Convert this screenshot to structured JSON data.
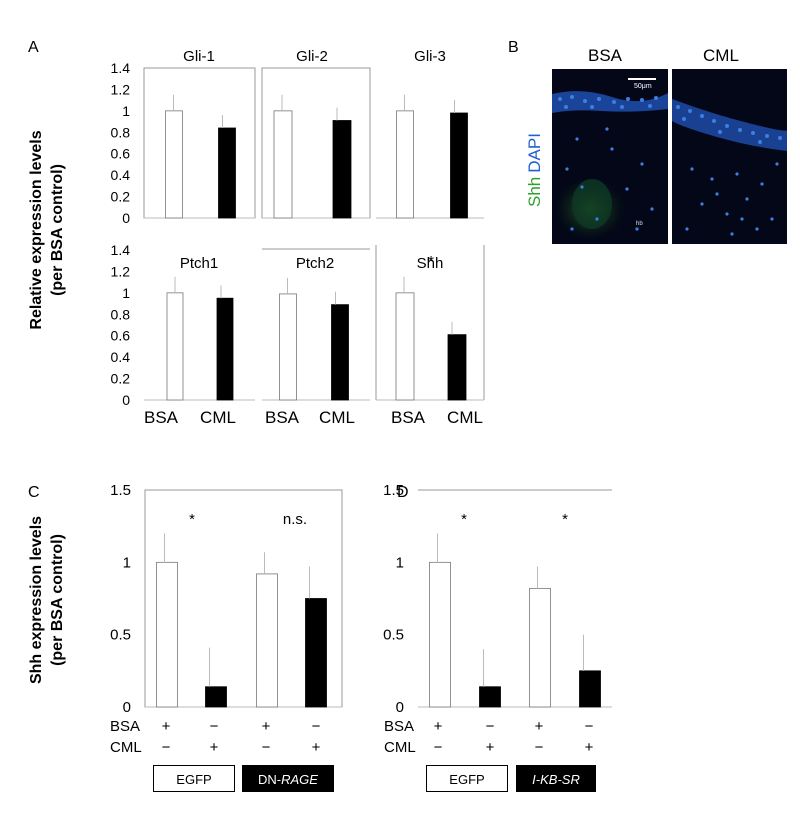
{
  "panel_letters": {
    "a": "A",
    "b": "B",
    "c": "C",
    "d": "D"
  },
  "panel_a": {
    "ylabel_line1": "Relative expression levels",
    "ylabel_line2": "(per BSA control)",
    "x_categories": [
      "BSA",
      "CML"
    ]
  },
  "panel_b": {
    "left_label": "BSA",
    "right_label": "CML",
    "side_label_green": "Shh",
    "side_label_blue": "DAPI",
    "scale_text": "50μm",
    "hb_text": "hb",
    "colors": {
      "green": "#2ca02c",
      "blue": "#2060d0"
    }
  },
  "panel_c": {
    "ylabel_line1": "Shh expression levels",
    "ylabel_line2": "(per BSA control)",
    "row_labels": [
      "BSA",
      "CML"
    ],
    "row_signs": [
      [
        "+",
        "−",
        "+",
        "−"
      ],
      [
        "−",
        "+",
        "−",
        "+"
      ]
    ],
    "group_labels": [
      "EGFP",
      "DN-",
      "RAGE"
    ]
  },
  "panel_d": {
    "row_labels": [
      "BSA",
      "CML"
    ],
    "row_signs": [
      [
        "+",
        "−",
        "+",
        "−"
      ],
      [
        "−",
        "+",
        "−",
        "+"
      ]
    ],
    "group_labels": [
      "EGFP",
      "I-KB-SR"
    ]
  },
  "chart_data": [
    {
      "type": "bar",
      "panel": "A",
      "title": "Gli-1",
      "categories": [
        "BSA",
        "CML"
      ],
      "values": [
        1.0,
        0.84
      ],
      "ylim": [
        0,
        1.4
      ],
      "yticks": [
        "0",
        "0.2",
        "0.4",
        "0.6",
        "0.8",
        "1",
        "1.2",
        "1.4"
      ],
      "colors": [
        "#ffffff",
        "#000000"
      ]
    },
    {
      "type": "bar",
      "panel": "A",
      "title": "Gli-2",
      "categories": [
        "BSA",
        "CML"
      ],
      "values": [
        1.0,
        0.91
      ],
      "ylim": [
        0,
        1.4
      ],
      "colors": [
        "#ffffff",
        "#000000"
      ]
    },
    {
      "type": "bar",
      "panel": "A",
      "title": "Gli-3",
      "categories": [
        "BSA",
        "CML"
      ],
      "values": [
        1.0,
        0.98
      ],
      "ylim": [
        0,
        1.4
      ],
      "colors": [
        "#ffffff",
        "#000000"
      ]
    },
    {
      "type": "bar",
      "panel": "A",
      "title": "Ptch1",
      "categories": [
        "BSA",
        "CML"
      ],
      "values": [
        1.0,
        0.95
      ],
      "ylim": [
        0,
        1.4
      ],
      "yticks": [
        "0",
        "0.2",
        "0.4",
        "0.6",
        "0.8",
        "1",
        "1.2",
        "1.4"
      ],
      "colors": [
        "#ffffff",
        "#000000"
      ]
    },
    {
      "type": "bar",
      "panel": "A",
      "title": "Ptch2",
      "categories": [
        "BSA",
        "CML"
      ],
      "values": [
        0.99,
        0.89
      ],
      "ylim": [
        0,
        1.4
      ],
      "colors": [
        "#ffffff",
        "#000000"
      ]
    },
    {
      "type": "bar",
      "panel": "A",
      "title": "Shh",
      "categories": [
        "BSA",
        "CML"
      ],
      "values": [
        1.0,
        0.61
      ],
      "ylim": [
        0,
        1.4
      ],
      "significance": "*",
      "colors": [
        "#ffffff",
        "#000000"
      ]
    },
    {
      "type": "bar",
      "panel": "C",
      "values": [
        1.0,
        0.14,
        0.92,
        0.75
      ],
      "errors": [
        0.2,
        0.27,
        0.15,
        0.22
      ],
      "ylim": [
        0,
        1.5
      ],
      "yticks": [
        "0",
        "0.5",
        "1",
        "1.5"
      ],
      "colors": [
        "#ffffff",
        "#000000",
        "#ffffff",
        "#000000"
      ],
      "significance": [
        "*",
        "n.s."
      ]
    },
    {
      "type": "bar",
      "panel": "D",
      "values": [
        1.0,
        0.14,
        0.82,
        0.25
      ],
      "errors": [
        0.2,
        0.26,
        0.15,
        0.25
      ],
      "ylim": [
        0,
        1.5
      ],
      "yticks": [
        "0",
        "0.5",
        "1",
        "1.5"
      ],
      "colors": [
        "#ffffff",
        "#000000",
        "#ffffff",
        "#000000"
      ],
      "significance": [
        "*",
        "*"
      ]
    }
  ]
}
